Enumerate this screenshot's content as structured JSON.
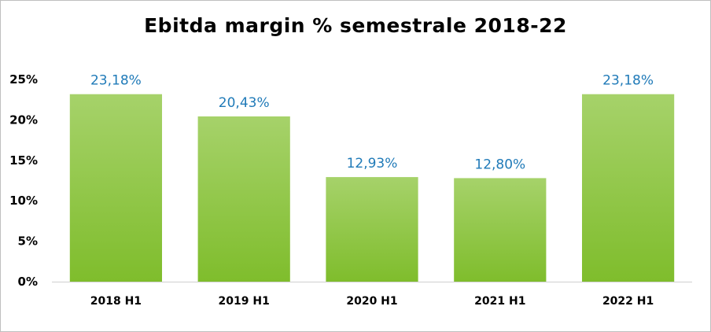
{
  "chart_data": {
    "type": "bar",
    "title": "Ebitda margin % semestrale 2018-22",
    "categories": [
      "2018 H1",
      "2019 H1",
      "2020 H1",
      "2021 H1",
      "2022 H1"
    ],
    "values": [
      23.18,
      20.43,
      12.93,
      12.8,
      23.18
    ],
    "data_labels": [
      "23,18%",
      "20,43%",
      "12,93%",
      "12,80%",
      "23,18%"
    ],
    "y_ticks": [
      "0%",
      "5%",
      "10%",
      "15%",
      "20%",
      "25%"
    ],
    "ylim": [
      0,
      25
    ],
    "xlabel": "",
    "ylabel": "",
    "grid": false,
    "legend": "none",
    "bar_color_top": "#a6d26a",
    "bar_color_bottom": "#7fbd2c",
    "label_color": "#1f7ab8"
  }
}
